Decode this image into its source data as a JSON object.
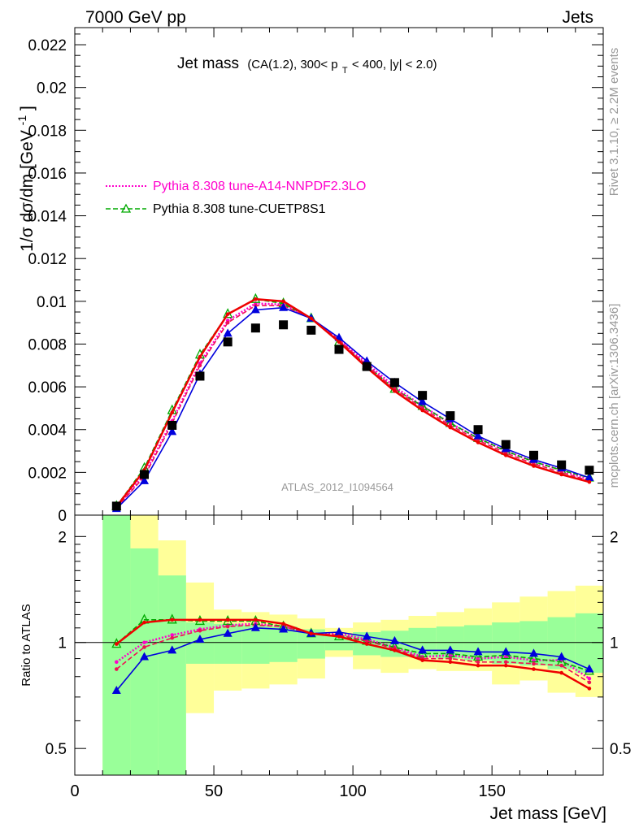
{
  "header": {
    "left": "7000 GeV pp",
    "right": "Jets"
  },
  "side_labels": {
    "rivet": "Rivet 3.1.10, ≥ 2.2M events",
    "mcplots": "mcplots.cern.ch [arXiv:1306.3436]"
  },
  "chart_data": {
    "type": "line",
    "title_main": "Jet mass",
    "title_detail": "(CA(1.2), 300< p",
    "title_sub": "T",
    "title_tail": " < 400, |y| < 2.0)",
    "analysis_label": "ATLAS_2012_I1094564",
    "xlabel": "Jet mass [GeV]",
    "ylabel_main": "1/σ dσ/dm [GeV",
    "ylabel_sup": "-1",
    "ylabel_close": "]",
    "ylabel_ratio": "Ratio to ATLAS",
    "xlim": [
      0,
      190
    ],
    "ylim_main": [
      0,
      0.0228
    ],
    "ylim_ratio": [
      0.42,
      2.3
    ],
    "ratio_log_scale": true,
    "x_ticks": [
      "0",
      "50",
      "100",
      "150"
    ],
    "y_ticks_main": [
      "0",
      "0.002",
      "0.004",
      "0.006",
      "0.008",
      "0.01",
      "0.012",
      "0.014",
      "0.016",
      "0.018",
      "0.02",
      "0.022"
    ],
    "y_ticks_ratio": [
      "0.5",
      "1",
      "2"
    ],
    "x": [
      15,
      25,
      35,
      45,
      55,
      65,
      75,
      85,
      95,
      105,
      115,
      125,
      135,
      145,
      155,
      165,
      175,
      185
    ],
    "data": {
      "name": "ATLAS",
      "values": [
        0.00042,
        0.0019,
        0.0042,
        0.0065,
        0.0081,
        0.00875,
        0.0089,
        0.00865,
        0.00775,
        0.00695,
        0.0062,
        0.0056,
        0.00465,
        0.004,
        0.0033,
        0.0028,
        0.00235,
        0.0021
      ],
      "color": "#000000"
    },
    "series": [
      {
        "name": "Pythia 8.308 tune-A14-NNPDF2.3LO",
        "style": "dotted",
        "color": "#ff00cc",
        "in_legend": true,
        "values": [
          0.00037,
          0.0019,
          0.0044,
          0.0071,
          0.0091,
          0.0099,
          0.00985,
          0.0092,
          0.0082,
          0.0071,
          0.006,
          0.0051,
          0.0043,
          0.0036,
          0.003,
          0.0025,
          0.0021,
          0.00165
        ],
        "ratio": [
          0.88,
          1.0,
          1.05,
          1.09,
          1.12,
          1.13,
          1.11,
          1.06,
          1.06,
          1.02,
          0.97,
          0.91,
          0.92,
          0.9,
          0.91,
          0.89,
          0.89,
          0.79
        ]
      },
      {
        "name": "Pythia 8.308 tune-CUETP8S1",
        "style": "dashed-triangle",
        "color": "#00aa00",
        "in_legend": true,
        "values": [
          0.00042,
          0.0022,
          0.0049,
          0.0075,
          0.0094,
          0.0101,
          0.0099,
          0.0092,
          0.0081,
          0.007,
          0.0059,
          0.0051,
          0.0043,
          0.0036,
          0.003,
          0.0025,
          0.0021,
          0.00175
        ],
        "ratio": [
          0.99,
          1.16,
          1.16,
          1.15,
          1.15,
          1.15,
          1.11,
          1.06,
          1.04,
          1.01,
          0.97,
          0.93,
          0.93,
          0.91,
          0.92,
          0.9,
          0.88,
          0.83
        ]
      },
      {
        "name": "",
        "style": "dashed",
        "color": "#ee1155",
        "in_legend": false,
        "values": [
          0.00035,
          0.0018,
          0.0043,
          0.007,
          0.009,
          0.0098,
          0.0098,
          0.0092,
          0.0082,
          0.007,
          0.0059,
          0.005,
          0.0042,
          0.0035,
          0.0029,
          0.0024,
          0.002,
          0.0016
        ],
        "ratio": [
          0.84,
          0.97,
          1.03,
          1.08,
          1.11,
          1.12,
          1.11,
          1.06,
          1.05,
          1.01,
          0.96,
          0.9,
          0.9,
          0.88,
          0.88,
          0.87,
          0.86,
          0.77
        ]
      },
      {
        "name": "",
        "style": "solid-triangle",
        "color": "#0000dd",
        "in_legend": false,
        "values": [
          0.0003,
          0.0016,
          0.0039,
          0.0066,
          0.0085,
          0.0096,
          0.0097,
          0.0092,
          0.0083,
          0.0072,
          0.0062,
          0.0053,
          0.0045,
          0.0037,
          0.0031,
          0.0026,
          0.0022,
          0.00175
        ],
        "ratio": [
          0.73,
          0.91,
          0.95,
          1.02,
          1.06,
          1.1,
          1.09,
          1.06,
          1.07,
          1.04,
          1.01,
          0.95,
          0.95,
          0.94,
          0.94,
          0.93,
          0.91,
          0.84
        ]
      },
      {
        "name": "",
        "style": "solid",
        "color": "#ee0000",
        "in_legend": false,
        "values": [
          0.0004,
          0.0021,
          0.0048,
          0.0074,
          0.0094,
          0.0101,
          0.01,
          0.0092,
          0.0081,
          0.0069,
          0.0058,
          0.0049,
          0.0041,
          0.0034,
          0.0028,
          0.0023,
          0.0019,
          0.00155
        ],
        "ratio": [
          0.99,
          1.14,
          1.16,
          1.16,
          1.16,
          1.16,
          1.13,
          1.06,
          1.04,
          0.99,
          0.95,
          0.89,
          0.88,
          0.86,
          0.86,
          0.84,
          0.82,
          0.74
        ]
      }
    ],
    "ratio_bands": {
      "edges": [
        10,
        20,
        30,
        40,
        50,
        60,
        70,
        80,
        90,
        100,
        110,
        120,
        130,
        140,
        150,
        160,
        170,
        180,
        190
      ],
      "inner": [
        [
          0.42,
          2.3
        ],
        [
          0.42,
          1.85
        ],
        [
          0.42,
          1.55
        ],
        [
          0.87,
          1.14
        ],
        [
          0.87,
          1.13
        ],
        [
          0.87,
          1.12
        ],
        [
          0.88,
          1.11
        ],
        [
          0.9,
          1.09
        ],
        [
          0.95,
          1.05
        ],
        [
          0.92,
          1.07
        ],
        [
          0.91,
          1.08
        ],
        [
          0.91,
          1.1
        ],
        [
          0.9,
          1.11
        ],
        [
          0.89,
          1.12
        ],
        [
          0.87,
          1.14
        ],
        [
          0.86,
          1.15
        ],
        [
          0.84,
          1.18
        ],
        [
          0.82,
          1.21
        ]
      ],
      "outer": [
        [
          0.42,
          2.3
        ],
        [
          0.42,
          2.3
        ],
        [
          0.42,
          1.95
        ],
        [
          0.63,
          1.48
        ],
        [
          0.73,
          1.24
        ],
        [
          0.74,
          1.22
        ],
        [
          0.76,
          1.2
        ],
        [
          0.79,
          1.17
        ],
        [
          0.91,
          1.1
        ],
        [
          0.84,
          1.14
        ],
        [
          0.82,
          1.16
        ],
        [
          0.84,
          1.19
        ],
        [
          0.83,
          1.22
        ],
        [
          0.83,
          1.25
        ],
        [
          0.76,
          1.3
        ],
        [
          0.78,
          1.35
        ],
        [
          0.72,
          1.4
        ],
        [
          0.7,
          1.45
        ]
      ]
    }
  }
}
